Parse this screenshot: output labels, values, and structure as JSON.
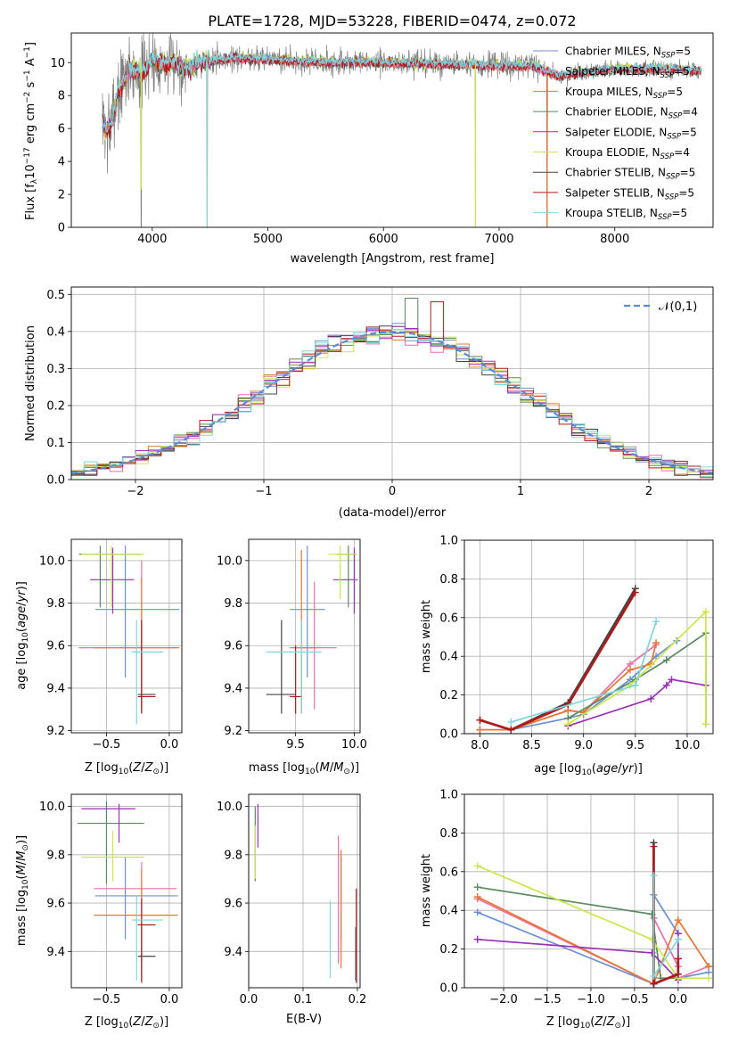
{
  "title": "PLATE=1728, MJD=53228, FIBERID=0474, z=0.072",
  "colors": {
    "chabrier_miles": "#6b8fd6",
    "salpeter_miles": "#f06ea8",
    "kroupa_miles": "#e8772e",
    "chabrier_elodie": "#5a8a5f",
    "salpeter_elodie": "#9a30b5",
    "kroupa_elodie": "#c8e84a",
    "chabrier_stelib": "#444444",
    "salpeter_stelib": "#b01a1a",
    "kroupa_stelib": "#7dd7dc",
    "data": "#7f7f7f",
    "grid": "#b0b0b0"
  },
  "panels": {
    "spectrum": {
      "xlabel": "wavelength [Angstrom, rest frame]",
      "ylabel": "Flux [f_λ 10^-17 erg cm^-2 s^-1 A^-1]",
      "xticks": [
        "4000",
        "5000",
        "6000",
        "7000",
        "8000"
      ],
      "yticks": [
        "0",
        "2",
        "4",
        "6",
        "8",
        "10"
      ],
      "legend": [
        "Chabrier MILES, N_SSP=5",
        "Salpeter MILES, N_SSP=5",
        "Kroupa MILES, N_SSP=5",
        "Chabrier ELODIE, N_SSP=4",
        "Salpeter ELODIE, N_SSP=5",
        "Kroupa ELODIE, N_SSP=4",
        "Chabrier STELIB, N_SSP=5",
        "Salpeter STELIB, N_SSP=5",
        "Kroupa STELIB, N_SSP=5"
      ]
    },
    "residuals": {
      "xlabel": "(data-model)/error",
      "ylabel": "Normed distribution",
      "legend": "𝒩(0,1)",
      "xticks": [
        "−2",
        "−1",
        "0",
        "1",
        "2"
      ],
      "yticks": [
        "0.0",
        "0.1",
        "0.2",
        "0.3",
        "0.4",
        "0.5"
      ]
    },
    "age_z": {
      "xlabel": "Z [log10(Z/Z⊙)]",
      "ylabel": "age [log10(age/yr)]",
      "xticks": [
        "−0.5",
        "0.0"
      ],
      "yticks": [
        "9.2",
        "9.4",
        "9.6",
        "9.8",
        "10.0"
      ]
    },
    "age_mass": {
      "xlabel": "mass [log10(M/M⊙)]",
      "xticks": [
        "9.5",
        "10.0"
      ],
      "yticks": [
        "9.2",
        "9.4",
        "9.6",
        "9.8",
        "10.0"
      ]
    },
    "mw_age": {
      "xlabel": "age [log10(age/yr)]",
      "ylabel": "mass weight",
      "xticks": [
        "8.0",
        "8.5",
        "9.0",
        "9.5",
        "10.0"
      ],
      "yticks": [
        "0.0",
        "0.2",
        "0.4",
        "0.6",
        "0.8",
        "1.0"
      ]
    },
    "mass_z": {
      "xlabel": "Z [log10(Z/Z⊙)]",
      "ylabel": "mass [log10(M/M⊙)]",
      "xticks": [
        "−0.5",
        "0.0"
      ],
      "yticks": [
        "9.4",
        "9.6",
        "9.8",
        "10.0"
      ]
    },
    "mass_ebv": {
      "xlabel": "E(B-V)",
      "xticks": [
        "0.0",
        "0.1",
        "0.2"
      ],
      "yticks": [
        "9.4",
        "9.6",
        "9.8",
        "10.0"
      ]
    },
    "mw_z": {
      "xlabel": "Z [log10(Z/Z⊙)]",
      "ylabel": "mass weight",
      "xticks": [
        "−2.0",
        "−1.5",
        "−1.0",
        "−0.5",
        "0.0"
      ],
      "yticks": [
        "0.0",
        "0.2",
        "0.4",
        "0.6",
        "0.8",
        "1.0"
      ]
    }
  },
  "chart_data": [
    {
      "type": "line",
      "title": "PLATE=1728, MJD=53228, FIBERID=0474, z=0.072",
      "xlabel": "wavelength [Angstrom, rest frame]",
      "ylabel": "Flux [f_λ 10^-17 erg cm^-2 s^-1 A^-1]",
      "xlim": [
        3300,
        8850
      ],
      "ylim": [
        0,
        11.8
      ],
      "continuum": {
        "x": [
          3570,
          3600,
          3650,
          3700,
          3750,
          3800,
          3850,
          3900,
          3950,
          4000,
          4100,
          4200,
          4300,
          4400,
          4500,
          4700,
          5000,
          5500,
          6000,
          6500,
          7000,
          7300,
          7500,
          8000,
          8500,
          8750
        ],
        "y": [
          6.6,
          5.8,
          6.3,
          8.2,
          8.8,
          9.6,
          9.5,
          9.4,
          9.6,
          10.2,
          9.9,
          10.0,
          9.6,
          10.0,
          10.1,
          10.3,
          10.2,
          10.0,
          10.0,
          9.9,
          9.8,
          9.8,
          9.2,
          9.6,
          9.6,
          9.5
        ]
      },
      "data_dropouts": [
        3905,
        4475,
        6795,
        7415
      ],
      "series": [
        {
          "name": "Chabrier MILES, N_SSP=5"
        },
        {
          "name": "Salpeter MILES, N_SSP=5"
        },
        {
          "name": "Kroupa MILES, N_SSP=5"
        },
        {
          "name": "Chabrier ELODIE, N_SSP=4"
        },
        {
          "name": "Salpeter ELODIE, N_SSP=5"
        },
        {
          "name": "Kroupa ELODIE, N_SSP=4"
        },
        {
          "name": "Chabrier STELIB, N_SSP=5"
        },
        {
          "name": "Salpeter STELIB, N_SSP=5"
        },
        {
          "name": "Kroupa STELIB, N_SSP=5"
        }
      ]
    },
    {
      "type": "line",
      "xlabel": "(data-model)/error",
      "ylabel": "Normed distribution",
      "xlim": [
        -2.5,
        2.5
      ],
      "ylim": [
        0,
        0.52
      ],
      "reference": {
        "name": "𝒩(0,1)",
        "mean": 0,
        "sigma": 1
      },
      "histogram_bin_width": 0.1
    },
    {
      "type": "scatter",
      "xlabel": "Z [log10(Z/Z⊙)]",
      "ylabel": "age [log10(age/yr)]",
      "xlim": [
        -0.78,
        0.1
      ],
      "ylim": [
        9.19,
        10.1
      ],
      "points": [
        {
          "series": "Chabrier MILES",
          "x": -0.35,
          "y": 9.77,
          "xlo": -0.59,
          "xhi": 0.08,
          "ylo": 9.45,
          "yhi": 10.07
        },
        {
          "series": "Salpeter MILES",
          "x": -0.22,
          "y": 9.59,
          "xlo": -0.72,
          "xhi": 0.06,
          "ylo": 9.3,
          "yhi": 10.0
        },
        {
          "series": "Kroupa MILES",
          "x": -0.22,
          "y": 9.59,
          "xlo": -0.6,
          "xhi": 0.08,
          "ylo": 9.28,
          "yhi": 9.92
        },
        {
          "series": "Chabrier ELODIE",
          "x": -0.55,
          "y": 10.03,
          "xlo": -0.72,
          "xhi": -0.22,
          "ylo": 9.78,
          "yhi": 10.07
        },
        {
          "series": "Salpeter ELODIE",
          "x": -0.45,
          "y": 9.91,
          "xlo": -0.63,
          "xhi": -0.28,
          "ylo": 9.75,
          "yhi": 10.06
        },
        {
          "series": "Kroupa ELODIE",
          "x": -0.46,
          "y": 10.03,
          "xlo": -0.7,
          "xhi": -0.2,
          "ylo": 9.78,
          "yhi": 10.07
        },
        {
          "series": "Chabrier STELIB",
          "x": -0.22,
          "y": 9.37,
          "xlo": -0.25,
          "xhi": -0.11,
          "ylo": 9.28,
          "yhi": 9.72
        },
        {
          "series": "Salpeter STELIB",
          "x": -0.22,
          "y": 9.36,
          "xlo": -0.25,
          "xhi": -0.11,
          "ylo": 9.29,
          "yhi": 9.72
        },
        {
          "series": "Kroupa STELIB",
          "x": -0.26,
          "y": 9.57,
          "xlo": -0.3,
          "xhi": -0.05,
          "ylo": 9.23,
          "yhi": 9.72
        }
      ]
    },
    {
      "type": "scatter",
      "xlabel": "mass [log10(M/M⊙)]",
      "xlim": [
        9.1,
        10.05
      ],
      "ylim": [
        9.19,
        10.1
      ],
      "points": [
        {
          "series": "Chabrier MILES",
          "x": 9.6,
          "y": 9.77,
          "xlo": 9.45,
          "xhi": 9.75,
          "ylo": 9.45,
          "yhi": 10.07
        },
        {
          "series": "Salpeter MILES",
          "x": 9.66,
          "y": 9.59,
          "xlo": 9.45,
          "xhi": 9.85,
          "ylo": 9.3,
          "yhi": 9.9
        },
        {
          "series": "Kroupa MILES",
          "x": 9.55,
          "y": 9.59,
          "xlo": 9.48,
          "xhi": 9.68,
          "ylo": 9.28,
          "yhi": 10.05
        },
        {
          "series": "Chabrier ELODIE",
          "x": 9.95,
          "y": 10.03,
          "xlo": 9.85,
          "xhi": 10.02,
          "ylo": 9.78,
          "yhi": 10.07
        },
        {
          "series": "Salpeter ELODIE",
          "x": 10.0,
          "y": 9.91,
          "xlo": 9.82,
          "xhi": 10.03,
          "ylo": 9.75,
          "yhi": 10.06
        },
        {
          "series": "Kroupa ELODIE",
          "x": 9.88,
          "y": 10.03,
          "xlo": 9.78,
          "xhi": 10.02,
          "ylo": 9.82,
          "yhi": 10.07
        },
        {
          "series": "Chabrier STELIB",
          "x": 9.38,
          "y": 9.37,
          "xlo": 9.25,
          "xhi": 9.5,
          "ylo": 9.28,
          "yhi": 9.72
        },
        {
          "series": "Salpeter STELIB",
          "x": 9.5,
          "y": 9.36,
          "xlo": 9.45,
          "xhi": 9.55,
          "ylo": 9.28,
          "yhi": 9.6
        },
        {
          "series": "Kroupa STELIB",
          "x": 9.55,
          "y": 9.57,
          "xlo": 9.25,
          "xhi": 9.72,
          "ylo": 9.28,
          "yhi": 9.72
        }
      ]
    },
    {
      "type": "line",
      "xlabel": "age [log10(age/yr)]",
      "ylabel": "mass weight",
      "xlim": [
        7.85,
        10.25
      ],
      "ylim": [
        0,
        1
      ],
      "series": [
        {
          "series": "Chabrier MILES",
          "x": [
            8.0,
            8.3,
            8.85,
            9.0,
            9.45,
            9.7,
            9.9
          ],
          "y": [
            0.02,
            0.02,
            0.08,
            0.1,
            0.28,
            0.4,
            0.48
          ]
        },
        {
          "series": "Salpeter MILES",
          "x": [
            8.0,
            8.3,
            8.85,
            9.0,
            9.45,
            9.7
          ],
          "y": [
            0.02,
            0.02,
            0.12,
            0.11,
            0.36,
            0.46
          ]
        },
        {
          "series": "Kroupa MILES",
          "x": [
            8.0,
            8.3,
            8.85,
            9.0,
            9.45,
            9.65,
            9.7
          ],
          "y": [
            0.02,
            0.02,
            0.12,
            0.11,
            0.33,
            0.36,
            0.47
          ]
        },
        {
          "series": "Chabrier ELODIE",
          "x": [
            8.85,
            9.5,
            9.8,
            10.18,
            10.18
          ],
          "y": [
            0.08,
            0.28,
            0.38,
            0.52,
            0.05
          ]
        },
        {
          "series": "Salpeter ELODIE",
          "x": [
            8.85,
            9.65,
            9.8,
            9.85,
            10.18
          ],
          "y": [
            0.04,
            0.18,
            0.25,
            0.28,
            0.25
          ]
        },
        {
          "series": "Kroupa ELODIE",
          "x": [
            8.85,
            9.45,
            10.18,
            10.18
          ],
          "y": [
            0.05,
            0.25,
            0.63,
            0.05
          ]
        },
        {
          "series": "Chabrier STELIB",
          "x": [
            8.0,
            8.3,
            8.85,
            9.5
          ],
          "y": [
            0.07,
            0.02,
            0.16,
            0.75
          ]
        },
        {
          "series": "Salpeter STELIB",
          "x": [
            8.0,
            8.3,
            8.85,
            9.5
          ],
          "y": [
            0.07,
            0.02,
            0.15,
            0.73
          ]
        },
        {
          "series": "Kroupa STELIB",
          "x": [
            8.3,
            9.5,
            9.7
          ],
          "y": [
            0.06,
            0.25,
            0.58
          ]
        }
      ]
    },
    {
      "type": "scatter",
      "xlabel": "Z [log10(Z/Z⊙)]",
      "ylabel": "mass [log10(M/M⊙)]",
      "xlim": [
        -0.78,
        0.1
      ],
      "ylim": [
        9.25,
        10.05
      ],
      "points": [
        {
          "series": "Chabrier MILES",
          "x": -0.35,
          "y": 9.63,
          "xlo": -0.59,
          "xhi": 0.07,
          "ylo": 9.45,
          "yhi": 9.79
        },
        {
          "series": "Salpeter MILES",
          "x": -0.22,
          "y": 9.66,
          "xlo": -0.6,
          "xhi": 0.06,
          "ylo": 9.35,
          "yhi": 9.77
        },
        {
          "series": "Kroupa MILES",
          "x": -0.22,
          "y": 9.55,
          "xlo": -0.6,
          "xhi": 0.07,
          "ylo": 9.29,
          "yhi": 9.74
        },
        {
          "series": "Chabrier ELODIE",
          "x": -0.5,
          "y": 9.93,
          "xlo": -0.73,
          "xhi": -0.2,
          "ylo": 9.68,
          "yhi": 10.02
        },
        {
          "series": "Salpeter ELODIE",
          "x": -0.4,
          "y": 9.99,
          "xlo": -0.7,
          "xhi": -0.27,
          "ylo": 9.85,
          "yhi": 10.01
        },
        {
          "series": "Kroupa ELODIE",
          "x": -0.45,
          "y": 9.79,
          "xlo": -0.7,
          "xhi": -0.2,
          "ylo": 9.69,
          "yhi": 9.9
        },
        {
          "series": "Chabrier STELIB",
          "x": -0.22,
          "y": 9.38,
          "xlo": -0.25,
          "xhi": -0.11,
          "ylo": 9.28,
          "yhi": 9.5
        },
        {
          "series": "Salpeter STELIB",
          "x": -0.22,
          "y": 9.51,
          "xlo": -0.25,
          "xhi": -0.11,
          "ylo": 9.27,
          "yhi": 9.62
        },
        {
          "series": "Kroupa STELIB",
          "x": -0.26,
          "y": 9.53,
          "xlo": -0.3,
          "xhi": -0.05,
          "ylo": 9.28,
          "yhi": 9.63
        }
      ]
    },
    {
      "type": "scatter",
      "xlabel": "E(B-V)",
      "xlim": [
        0,
        0.205
      ],
      "ylim": [
        9.25,
        10.05
      ],
      "points": [
        {
          "series": "Chabrier MILES",
          "x": 0.17,
          "y": 9.63,
          "ylo": 9.45,
          "yhi": 9.79
        },
        {
          "series": "Salpeter MILES",
          "x": 0.165,
          "y": 9.66,
          "ylo": 9.35,
          "yhi": 9.88
        },
        {
          "series": "Kroupa MILES",
          "x": 0.17,
          "y": 9.55,
          "ylo": 9.33,
          "yhi": 9.82
        },
        {
          "series": "Chabrier ELODIE",
          "x": 0.012,
          "y": 9.93,
          "ylo": 9.69,
          "yhi": 10.0
        },
        {
          "series": "Salpeter ELODIE",
          "x": 0.017,
          "y": 9.99,
          "ylo": 9.83,
          "yhi": 10.01
        },
        {
          "series": "Kroupa ELODIE",
          "x": 0.012,
          "y": 9.79,
          "ylo": 9.7,
          "yhi": 9.92
        },
        {
          "series": "Chabrier STELIB",
          "x": 0.197,
          "y": 9.38,
          "ylo": 9.28,
          "yhi": 9.5
        },
        {
          "series": "Salpeter STELIB",
          "x": 0.198,
          "y": 9.51,
          "ylo": 9.27,
          "yhi": 9.66
        },
        {
          "series": "Kroupa STELIB",
          "x": 0.15,
          "y": 9.53,
          "ylo": 9.29,
          "yhi": 9.61
        }
      ]
    },
    {
      "type": "line",
      "xlabel": "Z [log10(Z/Z⊙)]",
      "ylabel": "mass weight",
      "xlim": [
        -2.45,
        0.4
      ],
      "ylim": [
        0,
        1
      ],
      "series": [
        {
          "series": "Chabrier MILES",
          "x": [
            -2.3,
            -0.28,
            -0.28,
            0.0,
            0.0,
            0.35
          ],
          "y": [
            0.39,
            0.02,
            0.48,
            0.28,
            0.05,
            0.08
          ]
        },
        {
          "series": "Salpeter MILES",
          "x": [
            -2.3,
            -0.28,
            -0.28,
            0.0,
            0.0,
            0.35
          ],
          "y": [
            0.46,
            0.02,
            0.36,
            0.11,
            0.05,
            0.11
          ]
        },
        {
          "series": "Kroupa MILES",
          "x": [
            -2.3,
            -0.28,
            0.0,
            0.35
          ],
          "y": [
            0.47,
            0.02,
            0.35,
            0.11
          ]
        },
        {
          "series": "Chabrier ELODIE",
          "x": [
            -2.3,
            -0.3,
            -0.2,
            0.0
          ],
          "y": [
            0.52,
            0.38,
            0.05,
            0.05
          ]
        },
        {
          "series": "Salpeter ELODIE",
          "x": [
            -2.3,
            -0.3,
            0.0,
            0.0
          ],
          "y": [
            0.25,
            0.18,
            0.04,
            0.28
          ]
        },
        {
          "series": "Kroupa ELODIE",
          "x": [
            -2.3,
            -0.3,
            0.0,
            0.35
          ],
          "y": [
            0.63,
            0.25,
            0.05,
            0.05
          ]
        },
        {
          "series": "Chabrier STELIB",
          "x": [
            -0.28,
            -0.28,
            0.0,
            0.0
          ],
          "y": [
            0.75,
            0.02,
            0.07,
            0.15
          ]
        },
        {
          "series": "Salpeter STELIB",
          "x": [
            -0.28,
            -0.28,
            0.0,
            0.0
          ],
          "y": [
            0.73,
            0.02,
            0.07,
            0.15
          ]
        },
        {
          "series": "Kroupa STELIB",
          "x": [
            -0.28,
            -0.28,
            0.0
          ],
          "y": [
            0.58,
            0.06,
            0.25
          ]
        }
      ]
    }
  ]
}
